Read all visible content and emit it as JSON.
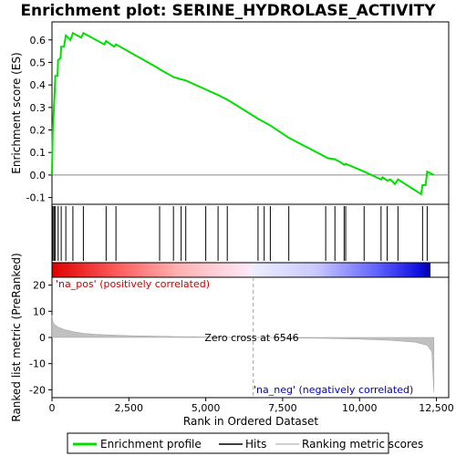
{
  "chart_data": {
    "type": "line",
    "title": "Enrichment plot: SERINE_HYDROLASE_ACTIVITY",
    "top_panel": {
      "ylabel": "Enrichment score (ES)",
      "ylim": [
        -0.13,
        0.68
      ],
      "yticks": [
        "0.6",
        "0.5",
        "0.4",
        "0.3",
        "0.2",
        "0.1",
        "0.0",
        "-0.1"
      ],
      "ytick_values": [
        0.6,
        0.5,
        0.4,
        0.3,
        0.2,
        0.1,
        0.0,
        -0.1
      ],
      "line_color": "#00e000",
      "points": [
        [
          0,
          0.0
        ],
        [
          25,
          0.19
        ],
        [
          70,
          0.32
        ],
        [
          110,
          0.44
        ],
        [
          180,
          0.44
        ],
        [
          200,
          0.51
        ],
        [
          280,
          0.52
        ],
        [
          300,
          0.57
        ],
        [
          390,
          0.57
        ],
        [
          450,
          0.62
        ],
        [
          600,
          0.6
        ],
        [
          680,
          0.63
        ],
        [
          950,
          0.61
        ],
        [
          1020,
          0.63
        ],
        [
          1700,
          0.58
        ],
        [
          1760,
          0.595
        ],
        [
          2020,
          0.57
        ],
        [
          2080,
          0.58
        ],
        [
          3450,
          0.475
        ],
        [
          3500,
          0.47
        ],
        [
          3950,
          0.435
        ],
        [
          4200,
          0.425
        ],
        [
          4350,
          0.42
        ],
        [
          5000,
          0.38
        ],
        [
          5400,
          0.355
        ],
        [
          5700,
          0.335
        ],
        [
          6700,
          0.25
        ],
        [
          6900,
          0.235
        ],
        [
          7100,
          0.22
        ],
        [
          7700,
          0.165
        ],
        [
          8900,
          0.08
        ],
        [
          8960,
          0.075
        ],
        [
          9200,
          0.07
        ],
        [
          9400,
          0.055
        ],
        [
          9500,
          0.045
        ],
        [
          9550,
          0.05
        ],
        [
          10150,
          0.015
        ],
        [
          10700,
          -0.02
        ],
        [
          10750,
          -0.01
        ],
        [
          10900,
          -0.025
        ],
        [
          11000,
          -0.02
        ],
        [
          11150,
          -0.04
        ],
        [
          11250,
          -0.02
        ],
        [
          12000,
          -0.085
        ],
        [
          12050,
          -0.045
        ],
        [
          12150,
          -0.045
        ],
        [
          12200,
          0.015
        ],
        [
          12420,
          0.0
        ]
      ]
    },
    "hits": [
      30,
      70,
      110,
      200,
      300,
      450,
      680,
      1020,
      1760,
      2080,
      3500,
      3950,
      4200,
      4350,
      5000,
      5400,
      5700,
      6700,
      6900,
      7100,
      7700,
      8900,
      9200,
      9500,
      9550,
      10150,
      10700,
      10900,
      11250,
      12050,
      12200
    ],
    "bottom_panel": {
      "ylabel": "Ranked list metric (PreRanked)",
      "ylim": [
        -23,
        23
      ],
      "yticks": [
        "20",
        "10",
        "0",
        "-10",
        "-20"
      ],
      "ytick_values": [
        20,
        10,
        0,
        -10,
        -20
      ],
      "metric_points": [
        [
          0,
          8.5
        ],
        [
          30,
          6
        ],
        [
          80,
          5
        ],
        [
          200,
          4
        ],
        [
          400,
          3
        ],
        [
          700,
          2.2
        ],
        [
          1000,
          1.6
        ],
        [
          1500,
          1.1
        ],
        [
          2500,
          0.7
        ],
        [
          4000,
          0.35
        ],
        [
          5500,
          0.12
        ],
        [
          6546,
          0
        ],
        [
          7500,
          -0.15
        ],
        [
          9000,
          -0.4
        ],
        [
          10000,
          -0.65
        ],
        [
          11000,
          -1.1
        ],
        [
          11800,
          -1.8
        ],
        [
          12200,
          -3
        ],
        [
          12350,
          -5.5
        ],
        [
          12420,
          -21
        ]
      ],
      "zero_cross_label": "Zero cross at 6546",
      "zero_cross_rank": 6546,
      "pos_label": "'na_pos' (positively correlated)",
      "neg_label": "'na_neg' (negatively correlated)"
    },
    "xlabel": "Rank in Ordered Dataset",
    "xlim": [
      0,
      12900
    ],
    "xticks": [
      "0",
      "2,500",
      "5,000",
      "7,500",
      "10,000",
      "12,500"
    ],
    "xtick_values": [
      0,
      2500,
      5000,
      7500,
      10000,
      12500
    ],
    "n_ranks": 12420,
    "legend": [
      {
        "label": "Enrichment profile",
        "color": "#00e000"
      },
      {
        "label": "Hits",
        "color": "#000000"
      },
      {
        "label": "Ranking metric scores",
        "color": "#c0c0c0"
      }
    ]
  }
}
